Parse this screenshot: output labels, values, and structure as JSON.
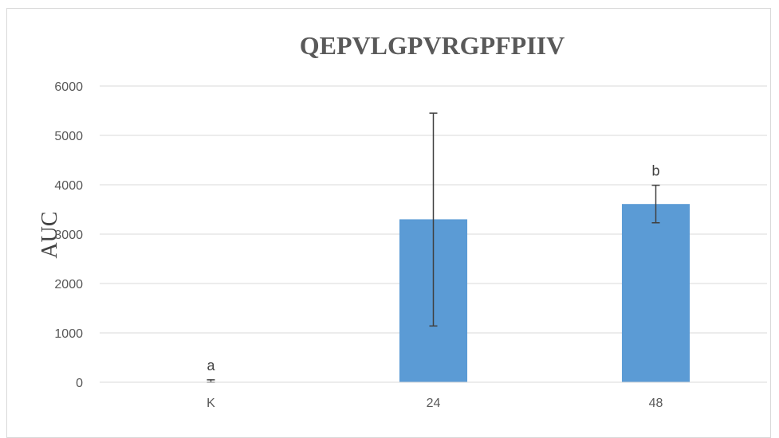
{
  "chart_data": {
    "type": "bar",
    "title": "QEPVLGPVRGPFPIIV",
    "xlabel": "",
    "ylabel": "AUC",
    "categories": [
      "K",
      "24",
      "48"
    ],
    "values": [
      0,
      3300,
      3610
    ],
    "error_upper": [
      50,
      5450,
      3990
    ],
    "error_lower": [
      0,
      1140,
      3230
    ],
    "annotations": [
      "a",
      "",
      "b"
    ],
    "ylim": [
      0,
      6000
    ],
    "yticks": [
      0,
      1000,
      2000,
      3000,
      4000,
      5000,
      6000
    ],
    "grid": true,
    "bar_color": "#5b9bd5",
    "error_color": "#404040",
    "grid_color": "#d9d9d9"
  }
}
